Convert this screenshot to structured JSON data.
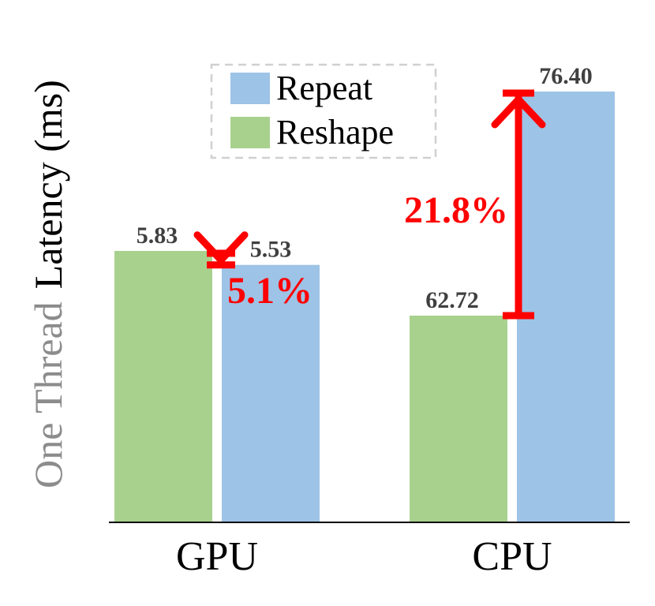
{
  "chart_data": {
    "type": "bar",
    "categories": [
      "GPU",
      "CPU"
    ],
    "series": [
      {
        "name": "Reshape",
        "values": [
          5.83,
          62.72
        ],
        "labels": [
          "5.83",
          "62.72"
        ],
        "color": "#a9d18e"
      },
      {
        "name": "Repeat",
        "values": [
          5.53,
          76.4
        ],
        "labels": [
          "5.53",
          "76.40"
        ],
        "color": "#9dc3e6"
      }
    ],
    "legend_order": [
      "Repeat",
      "Reshape"
    ],
    "ylabel_gray": "One Thread",
    "ylabel_black": "Latency (ms)",
    "annotations": [
      {
        "category": "GPU",
        "text": "5.1%",
        "from": "Reshape",
        "to": "Repeat"
      },
      {
        "category": "CPU",
        "text": "21.8%",
        "from": "Reshape",
        "to": "Repeat"
      }
    ],
    "annotation_color": "#ff0000",
    "legend_placement": "top-center",
    "legend_border": "dashed",
    "grid": false,
    "y_axis_visible": false
  }
}
